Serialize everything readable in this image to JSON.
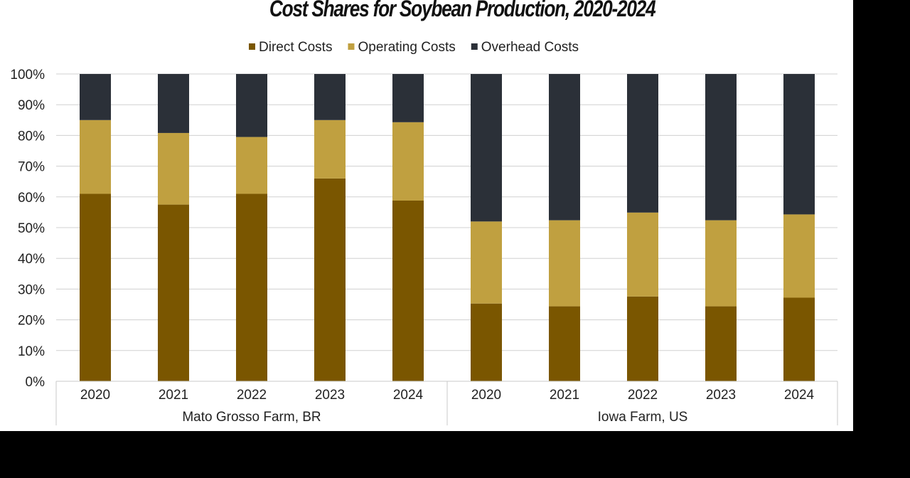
{
  "chart_data": {
    "type": "bar",
    "stacked": true,
    "title": "Cost Shares for Soybean Production, 2020-2024",
    "ylim": [
      0,
      100
    ],
    "yticks": [
      "0%",
      "10%",
      "20%",
      "30%",
      "40%",
      "50%",
      "60%",
      "70%",
      "80%",
      "90%",
      "100%"
    ],
    "legend_position": "top",
    "groups": [
      {
        "name": "Mato Grosso Farm, BR",
        "categories": [
          "2020",
          "2021",
          "2022",
          "2023",
          "2024"
        ]
      },
      {
        "name": "Iowa Farm, US",
        "categories": [
          "2020",
          "2021",
          "2022",
          "2023",
          "2024"
        ]
      }
    ],
    "series": [
      {
        "name": "Direct Costs",
        "color": "#7a5600",
        "values": [
          61,
          57.5,
          61,
          66,
          58.8,
          25.3,
          24.4,
          27.6,
          24.4,
          27.2
        ]
      },
      {
        "name": "Operating Costs",
        "color": "#c0a040",
        "values": [
          24,
          23.3,
          18.5,
          19,
          25.5,
          26.7,
          28,
          27.3,
          28,
          27.1
        ]
      },
      {
        "name": "Overhead Costs",
        "color": "#2b3038",
        "values": [
          15,
          19.2,
          20.5,
          15,
          15.7,
          48,
          47.6,
          45.1,
          47.6,
          45.7
        ]
      }
    ]
  }
}
